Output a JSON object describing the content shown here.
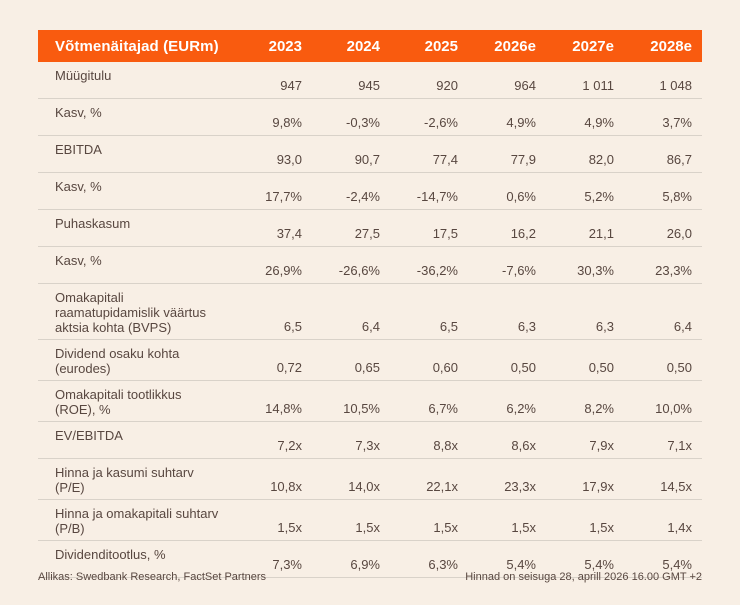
{
  "colors": {
    "page_bg": "#F8EFE5",
    "header_bg": "#F95B0F",
    "header_text": "#FFFFFF",
    "body_text": "#584740",
    "separator": "#D9D2C9"
  },
  "table": {
    "header": {
      "label": "Võtmenäitajad (EURm)",
      "years": [
        "2023",
        "2024",
        "2025",
        "2026e",
        "2027e",
        "2028e"
      ]
    },
    "rows": [
      {
        "label": "Müügitulu",
        "values": [
          "947",
          "945",
          "920",
          "964",
          "1 011",
          "1 048"
        ]
      },
      {
        "label": "Kasv, %",
        "values": [
          "9,8%",
          "-0,3%",
          "-2,6%",
          "4,9%",
          "4,9%",
          "3,7%"
        ]
      },
      {
        "label": "EBITDA",
        "values": [
          "93,0",
          "90,7",
          "77,4",
          "77,9",
          "82,0",
          "86,7"
        ]
      },
      {
        "label": "Kasv, %",
        "values": [
          "17,7%",
          "-2,4%",
          "-14,7%",
          "0,6%",
          "5,2%",
          "5,8%"
        ]
      },
      {
        "label": "Puhaskasum",
        "values": [
          "37,4",
          "27,5",
          "17,5",
          "16,2",
          "21,1",
          "26,0"
        ]
      },
      {
        "label": "Kasv, %",
        "values": [
          "26,9%",
          "-26,6%",
          "-36,2%",
          "-7,6%",
          "30,3%",
          "23,3%"
        ]
      },
      {
        "label": "Omakapitali raamatupidamislik väärtus aktsia kohta (BVPS)",
        "values": [
          "6,5",
          "6,4",
          "6,5",
          "6,3",
          "6,3",
          "6,4"
        ]
      },
      {
        "label": "Dividend osaku kohta (eurodes)",
        "values": [
          "0,72",
          "0,65",
          "0,60",
          "0,50",
          "0,50",
          "0,50"
        ]
      },
      {
        "label": "Omakapitali tootlikkus (ROE), %",
        "values": [
          "14,8%",
          "10,5%",
          "6,7%",
          "6,2%",
          "8,2%",
          "10,0%"
        ]
      },
      {
        "label": "EV/EBITDA",
        "values": [
          "7,2x",
          "7,3x",
          "8,8x",
          "8,6x",
          "7,9x",
          "7,1x"
        ]
      },
      {
        "label": "Hinna ja kasumi suhtarv (P/E)",
        "values": [
          "10,8x",
          "14,0x",
          "22,1x",
          "23,3x",
          "17,9x",
          "14,5x"
        ]
      },
      {
        "label": "Hinna ja omakapitali suhtarv (P/B)",
        "values": [
          "1,5x",
          "1,5x",
          "1,5x",
          "1,5x",
          "1,5x",
          "1,4x"
        ]
      },
      {
        "label": "Dividenditootlus, %",
        "values": [
          "7,3%",
          "6,9%",
          "6,3%",
          "5,4%",
          "5,4%",
          "5,4%"
        ]
      }
    ]
  },
  "footer": {
    "source": "Allikas: Swedbank Research, FactSet Partners",
    "price_note": "Hinnad on seisuga 28, aprill 2026 16.00 GMT +2"
  }
}
